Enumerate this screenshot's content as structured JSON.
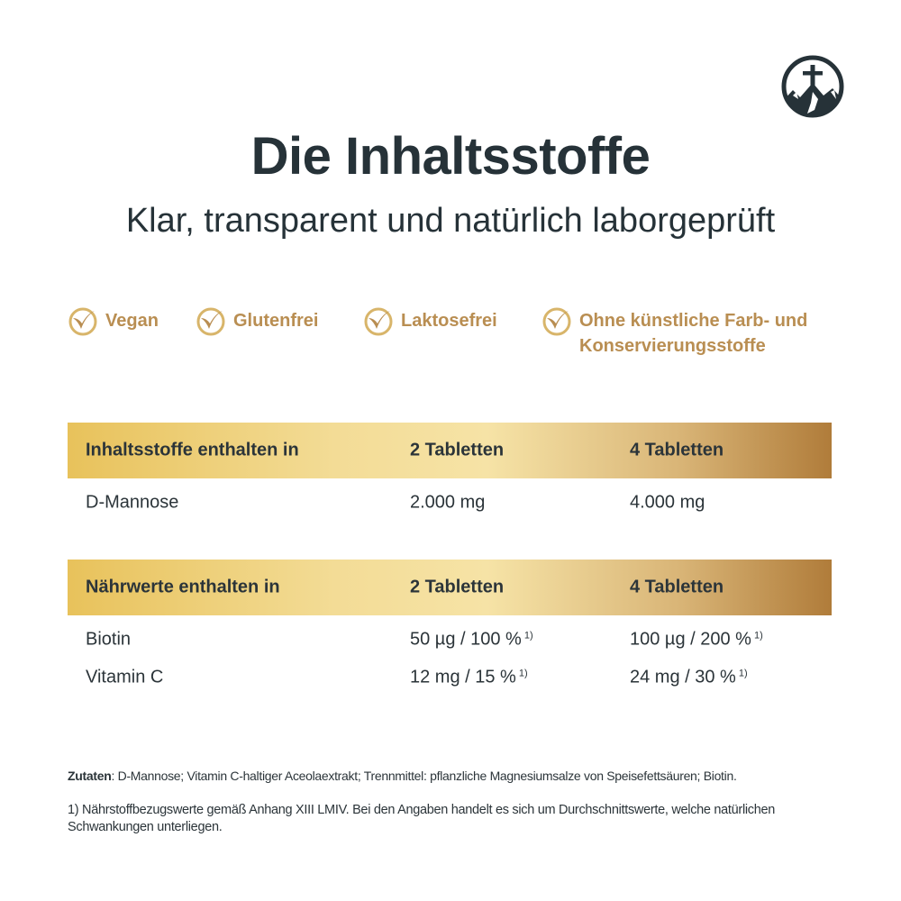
{
  "header": {
    "title": "Die Inhaltsstoffe",
    "subtitle": "Klar, transparent und natürlich laborgeprüft"
  },
  "badges": [
    {
      "label": "Vegan",
      "icon": "leaf-check-icon"
    },
    {
      "label": "Glutenfrei",
      "icon": "leaf-check-icon"
    },
    {
      "label": "Laktosefrei",
      "icon": "leaf-check-icon"
    },
    {
      "label": "Ohne künstliche Farb- und",
      "label2": "Konservierungsstoffe",
      "icon": "leaf-check-icon"
    }
  ],
  "table1": {
    "headers": [
      "Inhaltsstoffe enthalten in",
      "2 Tabletten",
      "4 Tabletten"
    ],
    "rows": [
      [
        "D-Mannose",
        "2.000 mg",
        "4.000 mg"
      ]
    ]
  },
  "table2": {
    "headers": [
      "Nährwerte enthalten in",
      "2 Tabletten",
      "4 Tabletten"
    ],
    "rows": [
      [
        "Biotin",
        "50 µg / 100 %",
        "100 µg / 200 %"
      ],
      [
        "Vitamin C",
        "12 mg / 15 %",
        "24 mg / 30 %"
      ]
    ],
    "footnote_mark": "1)"
  },
  "notes": {
    "ingredients_label": "Zutaten",
    "ingredients": ": D-Mannose; Vitamin C-haltiger Aceolaextrakt; Trennmittel: pflanzliche Magnesiumsalze von Speisefettsäuren; Biotin.",
    "footnote": "1) Nährstoffbezugswerte gemäß Anhang XIII LMIV. Bei den Angaben handelt es sich um Durchschnittswerte, welche natürlichen Schwankungen unterliegen."
  },
  "colors": {
    "gold": "#b98e52",
    "dark": "#263238"
  }
}
